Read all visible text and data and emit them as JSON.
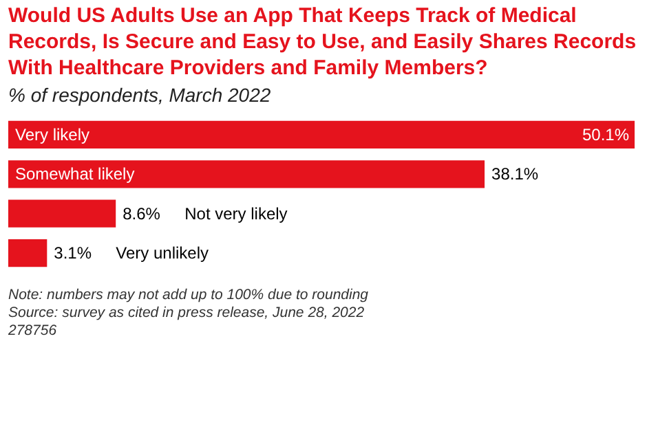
{
  "chart_data": {
    "type": "bar",
    "orientation": "horizontal",
    "title": "Would US Adults Use an App That Keeps Track of Medical Records, Is Secure and Easy to Use, and Easily Shares Records With Healthcare Providers and Family Members?",
    "subtitle": "% of respondents, March 2022",
    "categories": [
      "Very likely",
      "Somewhat likely",
      "Not very likely",
      "Very unlikely"
    ],
    "values": [
      50.1,
      38.1,
      8.6,
      3.1
    ],
    "value_labels": [
      "50.1%",
      "38.1%",
      "8.6%",
      "3.1%"
    ],
    "color": "#e5131d",
    "annotations": [
      "Note: numbers may not add up to 100% due to rounding",
      "Source: survey as cited in press release, June 28, 2022",
      "278756"
    ]
  }
}
